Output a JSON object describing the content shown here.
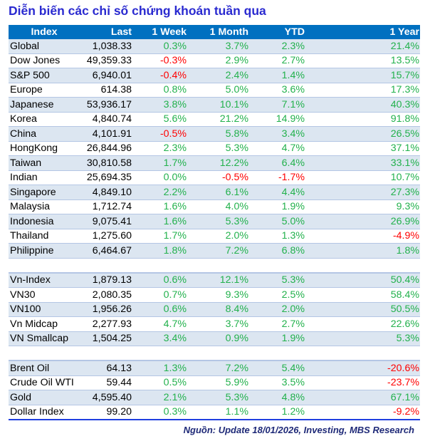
{
  "title": "Diễn biến các chỉ số chứng khoán tuần qua",
  "columns": [
    "Index",
    "Last",
    "1 Week",
    "1 Month",
    "YTD",
    "1 Year"
  ],
  "colors": {
    "header": "#0070c0",
    "positive": "#22b14c",
    "negative": "#ff0000",
    "shade": "#dce6f1"
  },
  "groups": [
    [
      [
        "Global",
        "1,038.33",
        "0.3%",
        "3.7%",
        "2.3%",
        "21.4%"
      ],
      [
        "Dow Jones",
        "49,359.33",
        "-0.3%",
        "2.9%",
        "2.7%",
        "13.5%"
      ],
      [
        "S&P 500",
        "6,940.01",
        "-0.4%",
        "2.4%",
        "1.4%",
        "15.7%"
      ],
      [
        "Europe",
        "614.38",
        "0.8%",
        "5.0%",
        "3.6%",
        "17.3%"
      ],
      [
        "Japanese",
        "53,936.17",
        "3.8%",
        "10.1%",
        "7.1%",
        "40.3%"
      ],
      [
        "Korea",
        "4,840.74",
        "5.6%",
        "21.2%",
        "14.9%",
        "91.8%"
      ],
      [
        "China",
        "4,101.91",
        "-0.5%",
        "5.8%",
        "3.4%",
        "26.5%"
      ],
      [
        "HongKong",
        "26,844.96",
        "2.3%",
        "5.3%",
        "4.7%",
        "37.1%"
      ],
      [
        "Taiwan",
        "30,810.58",
        "1.7%",
        "12.2%",
        "6.4%",
        "33.1%"
      ],
      [
        "Indian",
        "25,694.35",
        "0.0%",
        "-0.5%",
        "-1.7%",
        "10.7%"
      ],
      [
        "Singapore",
        "4,849.10",
        "2.2%",
        "6.1%",
        "4.4%",
        "27.3%"
      ],
      [
        "Malaysia",
        "1,712.74",
        "1.6%",
        "4.0%",
        "1.9%",
        "9.3%"
      ],
      [
        "Indonesia",
        "9,075.41",
        "1.6%",
        "5.3%",
        "5.0%",
        "26.9%"
      ],
      [
        "Thailand",
        "1,275.60",
        "1.7%",
        "2.0%",
        "1.3%",
        "-4.9%"
      ],
      [
        "Philippine",
        "6,464.67",
        "1.8%",
        "7.2%",
        "6.8%",
        "1.8%"
      ]
    ],
    [
      [
        "Vn-Index",
        "1,879.13",
        "0.6%",
        "12.1%",
        "5.3%",
        "50.4%"
      ],
      [
        "VN30",
        "2,080.35",
        "0.7%",
        "9.3%",
        "2.5%",
        "58.4%"
      ],
      [
        "VN100",
        "1,956.26",
        "0.6%",
        "8.4%",
        "2.0%",
        "50.5%"
      ],
      [
        "Vn Midcap",
        "2,277.93",
        "4.7%",
        "3.7%",
        "2.7%",
        "22.6%"
      ],
      [
        "VN Smallcap",
        "1,504.25",
        "3.4%",
        "0.9%",
        "1.9%",
        "5.3%"
      ]
    ],
    [
      [
        "Brent Oil",
        "64.13",
        "1.3%",
        "7.2%",
        "5.4%",
        "-20.6%"
      ],
      [
        "Crude Oil WTI",
        "59.44",
        "0.5%",
        "5.9%",
        "3.5%",
        "-23.7%"
      ],
      [
        "Gold",
        "4,595.40",
        "2.1%",
        "5.3%",
        "4.8%",
        "67.1%"
      ],
      [
        "Dollar Index",
        "99.20",
        "0.3%",
        "1.1%",
        "1.2%",
        "-9.2%"
      ]
    ]
  ],
  "source": "Nguồn: Update  18/01/2026, Investing, MBS Research"
}
